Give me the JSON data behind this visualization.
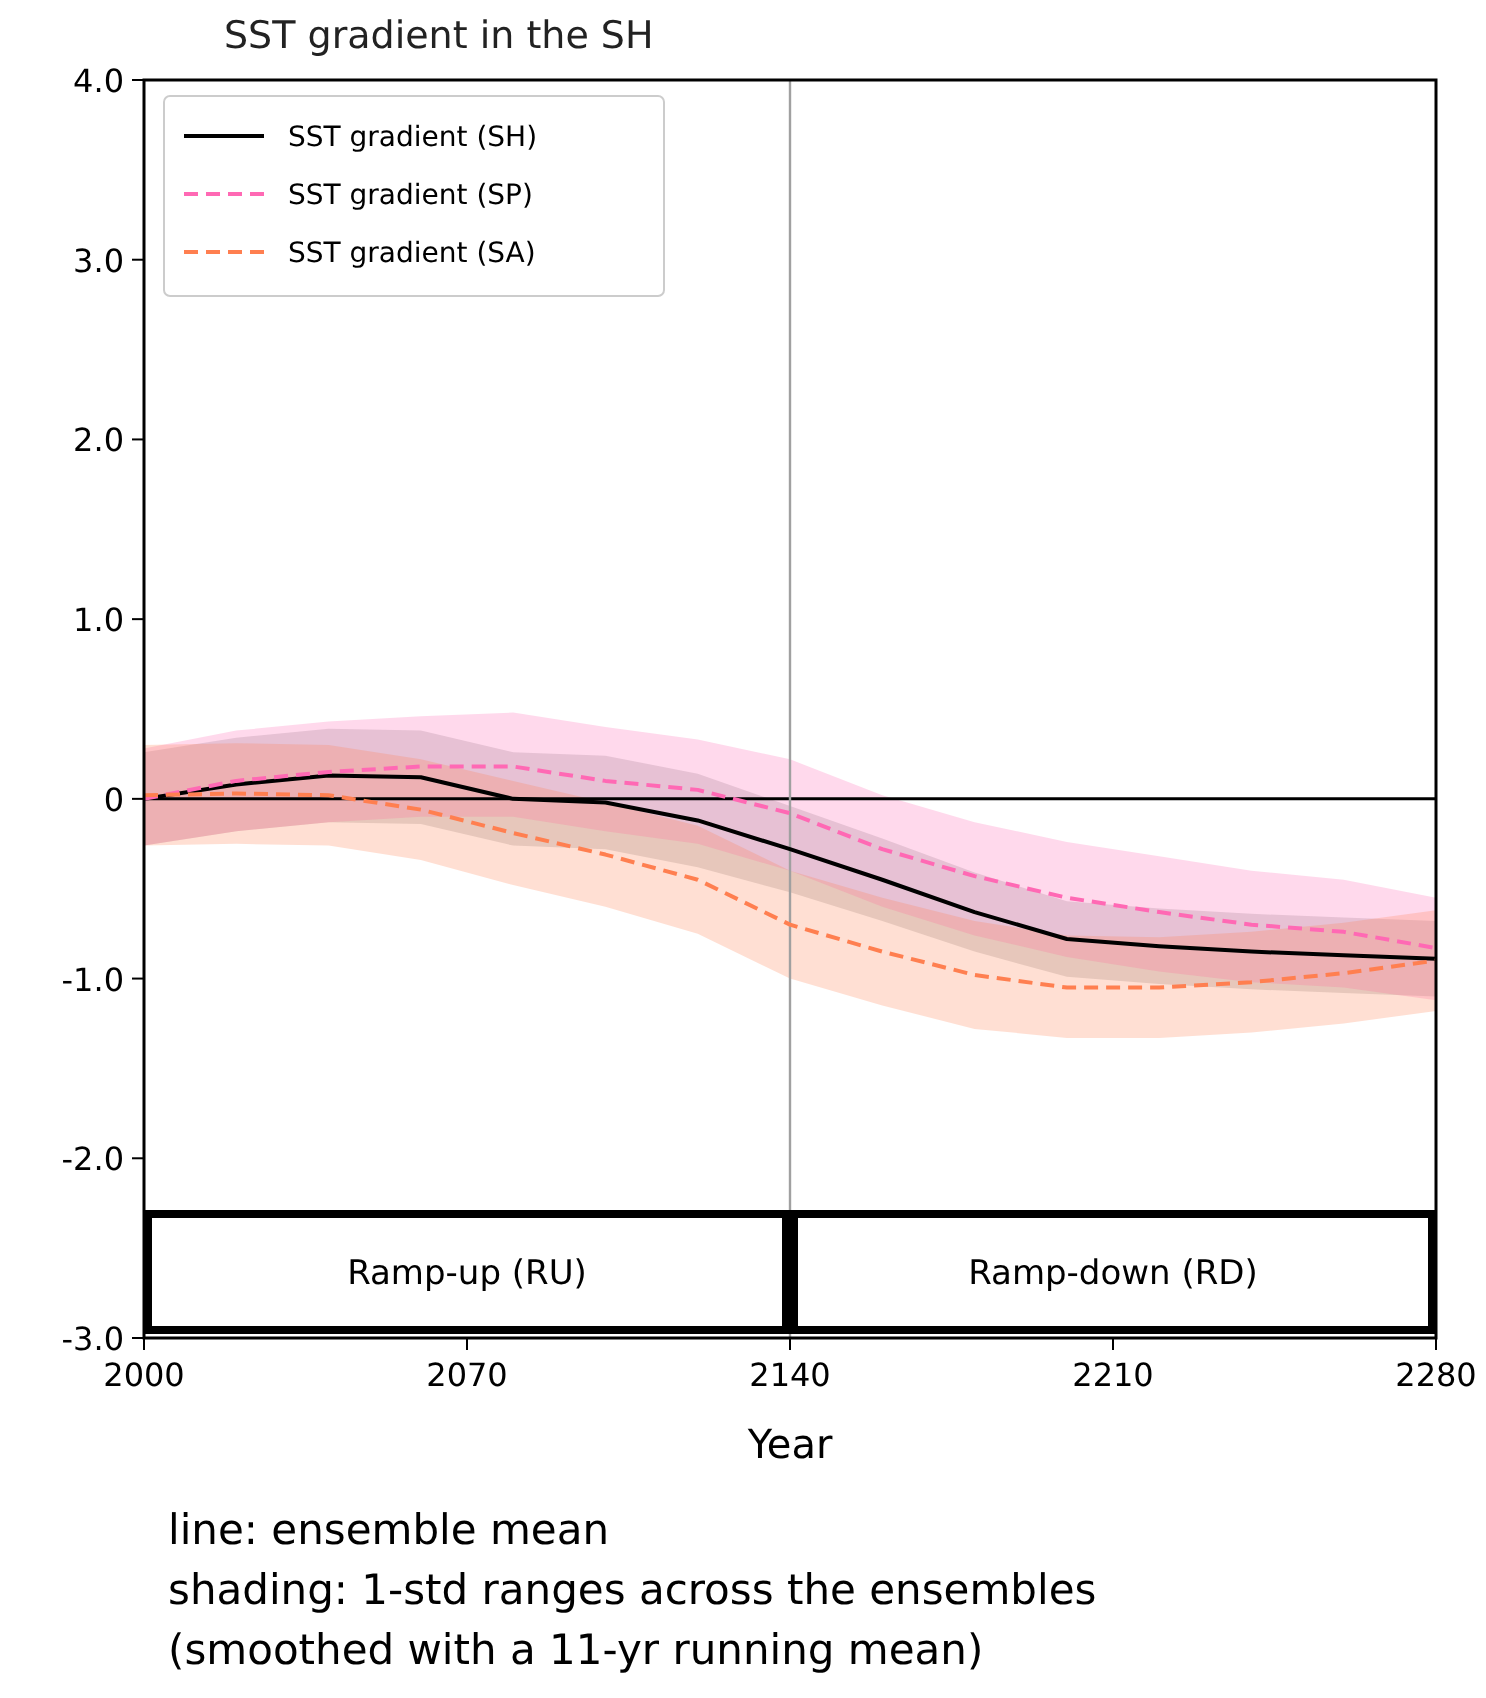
{
  "chart_data": {
    "type": "line",
    "title": "SST gradient in the SH",
    "xlabel": "Year",
    "x": [
      2000,
      2020,
      2040,
      2060,
      2080,
      2100,
      2120,
      2140,
      2160,
      2180,
      2200,
      2220,
      2240,
      2260,
      2280
    ],
    "series": [
      {
        "name": "SST gradient (SH)",
        "color": "#000000",
        "line_style": "solid",
        "values": [
          0.0,
          0.08,
          0.13,
          0.12,
          0.0,
          -0.02,
          -0.12,
          -0.28,
          -0.45,
          -0.63,
          -0.78,
          -0.82,
          -0.85,
          -0.87,
          -0.89
        ],
        "lower": [
          -0.26,
          -0.18,
          -0.13,
          -0.14,
          -0.26,
          -0.28,
          -0.38,
          -0.52,
          -0.68,
          -0.85,
          -0.99,
          -1.03,
          -1.06,
          -1.08,
          -1.1
        ],
        "upper": [
          0.26,
          0.34,
          0.39,
          0.38,
          0.26,
          0.24,
          0.14,
          -0.04,
          -0.22,
          -0.41,
          -0.57,
          -0.61,
          -0.64,
          -0.66,
          -0.68
        ]
      },
      {
        "name": "SST gradient (SP)",
        "color": "#ff69b4",
        "line_style": "dashed",
        "values": [
          0.0,
          0.1,
          0.15,
          0.18,
          0.18,
          0.1,
          0.05,
          -0.08,
          -0.28,
          -0.43,
          -0.55,
          -0.63,
          -0.7,
          -0.74,
          -0.83
        ],
        "lower": [
          -0.26,
          -0.18,
          -0.13,
          -0.1,
          -0.1,
          -0.18,
          -0.25,
          -0.4,
          -0.6,
          -0.76,
          -0.88,
          -0.96,
          -1.02,
          -1.05,
          -1.12
        ],
        "upper": [
          0.28,
          0.38,
          0.43,
          0.46,
          0.48,
          0.4,
          0.33,
          0.22,
          0.02,
          -0.13,
          -0.24,
          -0.32,
          -0.4,
          -0.45,
          -0.55
        ]
      },
      {
        "name": "SST gradient (SA)",
        "color": "#ff7f50",
        "line_style": "dashed",
        "values": [
          0.02,
          0.03,
          0.02,
          -0.06,
          -0.19,
          -0.31,
          -0.45,
          -0.7,
          -0.85,
          -0.98,
          -1.05,
          -1.05,
          -1.02,
          -0.97,
          -0.9
        ],
        "lower": [
          -0.26,
          -0.25,
          -0.26,
          -0.34,
          -0.48,
          -0.6,
          -0.75,
          -1.0,
          -1.15,
          -1.28,
          -1.33,
          -1.33,
          -1.3,
          -1.25,
          -1.18
        ],
        "upper": [
          0.3,
          0.31,
          0.3,
          0.22,
          0.1,
          -0.02,
          -0.15,
          -0.4,
          -0.55,
          -0.68,
          -0.76,
          -0.77,
          -0.74,
          -0.69,
          -0.62
        ]
      }
    ],
    "xlim": [
      2000,
      2280
    ],
    "xticks": [
      2000,
      2070,
      2140,
      2210,
      2280
    ],
    "ylim": [
      -3,
      4
    ],
    "yticks": [
      {
        "value": -3,
        "label": "-3.0"
      },
      {
        "value": -2,
        "label": "-2.0"
      },
      {
        "value": -1,
        "label": "-1.0"
      },
      0,
      {
        "value": 1,
        "label": "1.0"
      },
      {
        "value": 2,
        "label": "2.0"
      },
      {
        "value": 3,
        "label": "3.0"
      },
      {
        "value": 4,
        "label": "4.0"
      }
    ],
    "ref_lines": [
      {
        "axis": "y",
        "value": 0,
        "color": "#000000"
      },
      {
        "axis": "x",
        "value": 2140,
        "color": "#a0a0a0"
      }
    ],
    "bands": [
      {
        "axis": "x",
        "from": 2000,
        "to": 2140,
        "label": "Ramp-up (RU)"
      },
      {
        "axis": "x",
        "from": 2140,
        "to": 2280,
        "label": "Ramp-down (RD)"
      }
    ],
    "legend": "top left",
    "grid": false,
    "annotations": [
      "line: ensemble mean",
      "shading: 1-std ranges across the ensembles",
      "(smoothed with a 11-yr running mean)"
    ]
  }
}
